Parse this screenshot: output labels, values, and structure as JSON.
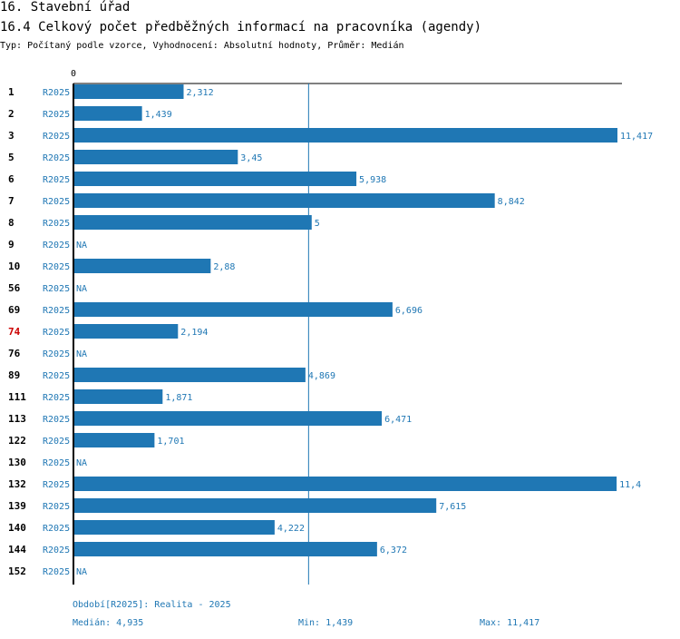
{
  "header": {
    "title": "16. Stavební úřad",
    "subtitle": "16.4 Celkový počet předběžných informací na pracovníka (agendy)",
    "description": "Typ: Počítaný podle vzorce, Vyhodnocení: Absolutní hodnoty, Průměr: Medián"
  },
  "colors": {
    "bar": "#1f77b4",
    "label": "#1f77b4",
    "highlight": "#cc0000",
    "text": "#000000"
  },
  "chart_data": {
    "type": "bar",
    "orientation": "horizontal",
    "axis_zero_label": "0",
    "xlim": [
      0,
      11.417
    ],
    "median": 4.935,
    "median_label": "Medián: 4,935",
    "min_label": "Min: 1,439",
    "max_label": "Max: 11,417",
    "period_label": "Období[R2025]: Realita - 2025",
    "highlight_id": "74",
    "rows": [
      {
        "id": "1",
        "period": "R2025",
        "value": 2.312,
        "label": "2,312"
      },
      {
        "id": "2",
        "period": "R2025",
        "value": 1.439,
        "label": "1,439"
      },
      {
        "id": "3",
        "period": "R2025",
        "value": 11.417,
        "label": "11,417"
      },
      {
        "id": "5",
        "period": "R2025",
        "value": 3.45,
        "label": "3,45"
      },
      {
        "id": "6",
        "period": "R2025",
        "value": 5.938,
        "label": "5,938"
      },
      {
        "id": "7",
        "period": "R2025",
        "value": 8.842,
        "label": "8,842"
      },
      {
        "id": "8",
        "period": "R2025",
        "value": 5,
        "label": "5"
      },
      {
        "id": "9",
        "period": "R2025",
        "value": null,
        "label": "NA"
      },
      {
        "id": "10",
        "period": "R2025",
        "value": 2.88,
        "label": "2,88"
      },
      {
        "id": "56",
        "period": "R2025",
        "value": null,
        "label": "NA"
      },
      {
        "id": "69",
        "period": "R2025",
        "value": 6.696,
        "label": "6,696"
      },
      {
        "id": "74",
        "period": "R2025",
        "value": 2.194,
        "label": "2,194"
      },
      {
        "id": "76",
        "period": "R2025",
        "value": null,
        "label": "NA"
      },
      {
        "id": "89",
        "period": "R2025",
        "value": 4.869,
        "label": "4,869"
      },
      {
        "id": "111",
        "period": "R2025",
        "value": 1.871,
        "label": "1,871"
      },
      {
        "id": "113",
        "period": "R2025",
        "value": 6.471,
        "label": "6,471"
      },
      {
        "id": "122",
        "period": "R2025",
        "value": 1.701,
        "label": "1,701"
      },
      {
        "id": "130",
        "period": "R2025",
        "value": null,
        "label": "NA"
      },
      {
        "id": "132",
        "period": "R2025",
        "value": 11.4,
        "label": "11,4"
      },
      {
        "id": "139",
        "period": "R2025",
        "value": 7.615,
        "label": "7,615"
      },
      {
        "id": "140",
        "period": "R2025",
        "value": 4.222,
        "label": "4,222"
      },
      {
        "id": "144",
        "period": "R2025",
        "value": 6.372,
        "label": "6,372"
      },
      {
        "id": "152",
        "period": "R2025",
        "value": null,
        "label": "NA"
      }
    ]
  }
}
